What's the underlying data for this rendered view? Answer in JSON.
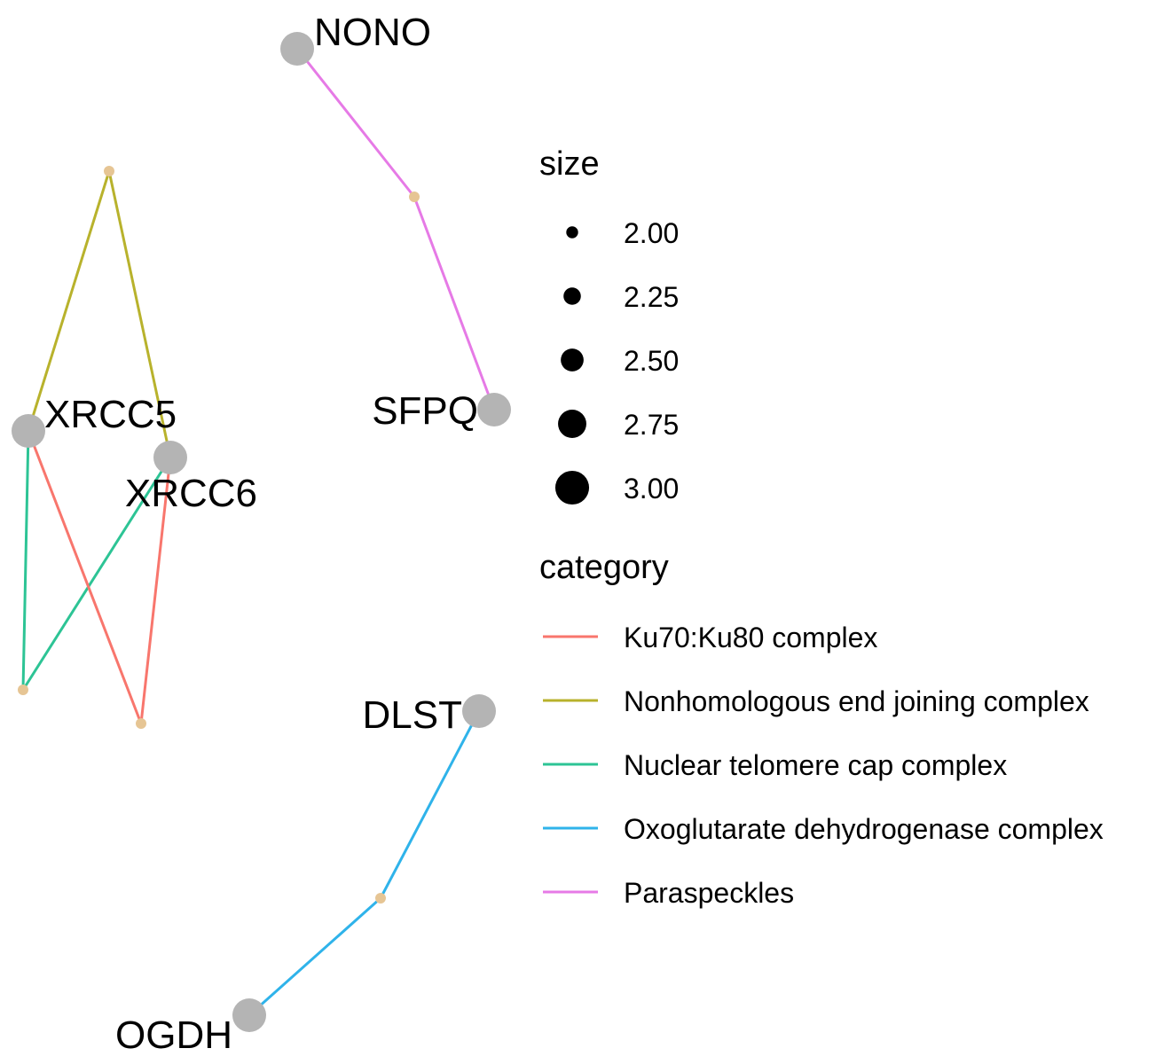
{
  "colors": {
    "gene_node": "#b4b4b4",
    "term_node": "#e6c594",
    "legend_point": "#000000",
    "background": "#ffffff"
  },
  "nodes": [
    {
      "id": "NONO",
      "label": "NONO",
      "type": "gene",
      "size": 3.0
    },
    {
      "id": "SFPQ",
      "label": "SFPQ",
      "type": "gene",
      "size": 3.0
    },
    {
      "id": "XRCC5",
      "label": "XRCC5",
      "type": "gene",
      "size": 3.0
    },
    {
      "id": "XRCC6",
      "label": "XRCC6",
      "type": "gene",
      "size": 3.0
    },
    {
      "id": "DLST",
      "label": "DLST",
      "type": "gene",
      "size": 3.0
    },
    {
      "id": "OGDH",
      "label": "OGDH",
      "type": "gene",
      "size": 3.0
    },
    {
      "id": "term_paraspeckles",
      "label": "",
      "type": "term",
      "category": "Paraspeckles",
      "size": 2.0
    },
    {
      "id": "term_nhej",
      "label": "",
      "type": "term",
      "category": "Nonhomologous end joining complex",
      "size": 2.0
    },
    {
      "id": "term_telomere",
      "label": "",
      "type": "term",
      "category": "Nuclear telomere cap complex",
      "size": 2.0
    },
    {
      "id": "term_ku",
      "label": "",
      "type": "term",
      "category": "Ku70:Ku80 complex",
      "size": 2.0
    },
    {
      "id": "term_ogdh",
      "label": "",
      "type": "term",
      "category": "Oxoglutarate dehydrogenase complex",
      "size": 2.0
    }
  ],
  "edges": [
    {
      "from": "NONO",
      "to": "term_paraspeckles",
      "category": "Paraspeckles"
    },
    {
      "from": "term_paraspeckles",
      "to": "SFPQ",
      "category": "Paraspeckles"
    },
    {
      "from": "XRCC5",
      "to": "term_nhej",
      "category": "Nonhomologous end joining complex"
    },
    {
      "from": "term_nhej",
      "to": "XRCC6",
      "category": "Nonhomologous end joining complex"
    },
    {
      "from": "XRCC5",
      "to": "term_telomere",
      "category": "Nuclear telomere cap complex"
    },
    {
      "from": "XRCC6",
      "to": "term_telomere",
      "category": "Nuclear telomere cap complex"
    },
    {
      "from": "XRCC5",
      "to": "term_ku",
      "category": "Ku70:Ku80 complex"
    },
    {
      "from": "XRCC6",
      "to": "term_ku",
      "category": "Ku70:Ku80 complex"
    },
    {
      "from": "DLST",
      "to": "term_ogdh",
      "category": "Oxoglutarate dehydrogenase complex"
    },
    {
      "from": "term_ogdh",
      "to": "OGDH",
      "category": "Oxoglutarate dehydrogenase complex"
    }
  ],
  "legend": {
    "size": {
      "title": "size",
      "entries": [
        "2.00",
        "2.25",
        "2.50",
        "2.75",
        "3.00"
      ],
      "values": [
        2.0,
        2.25,
        2.5,
        2.75,
        3.0
      ]
    },
    "category": {
      "title": "category",
      "entries": [
        {
          "label": "Ku70:Ku80 complex",
          "color": "#f8766d"
        },
        {
          "label": "Nonhomologous end joining complex",
          "color": "#b8b22c"
        },
        {
          "label": "Nuclear telomere cap complex",
          "color": "#2dc495"
        },
        {
          "label": "Oxoglutarate dehydrogenase complex",
          "color": "#2fb3ea"
        },
        {
          "label": "Paraspeckles",
          "color": "#e67ae6"
        }
      ]
    }
  }
}
